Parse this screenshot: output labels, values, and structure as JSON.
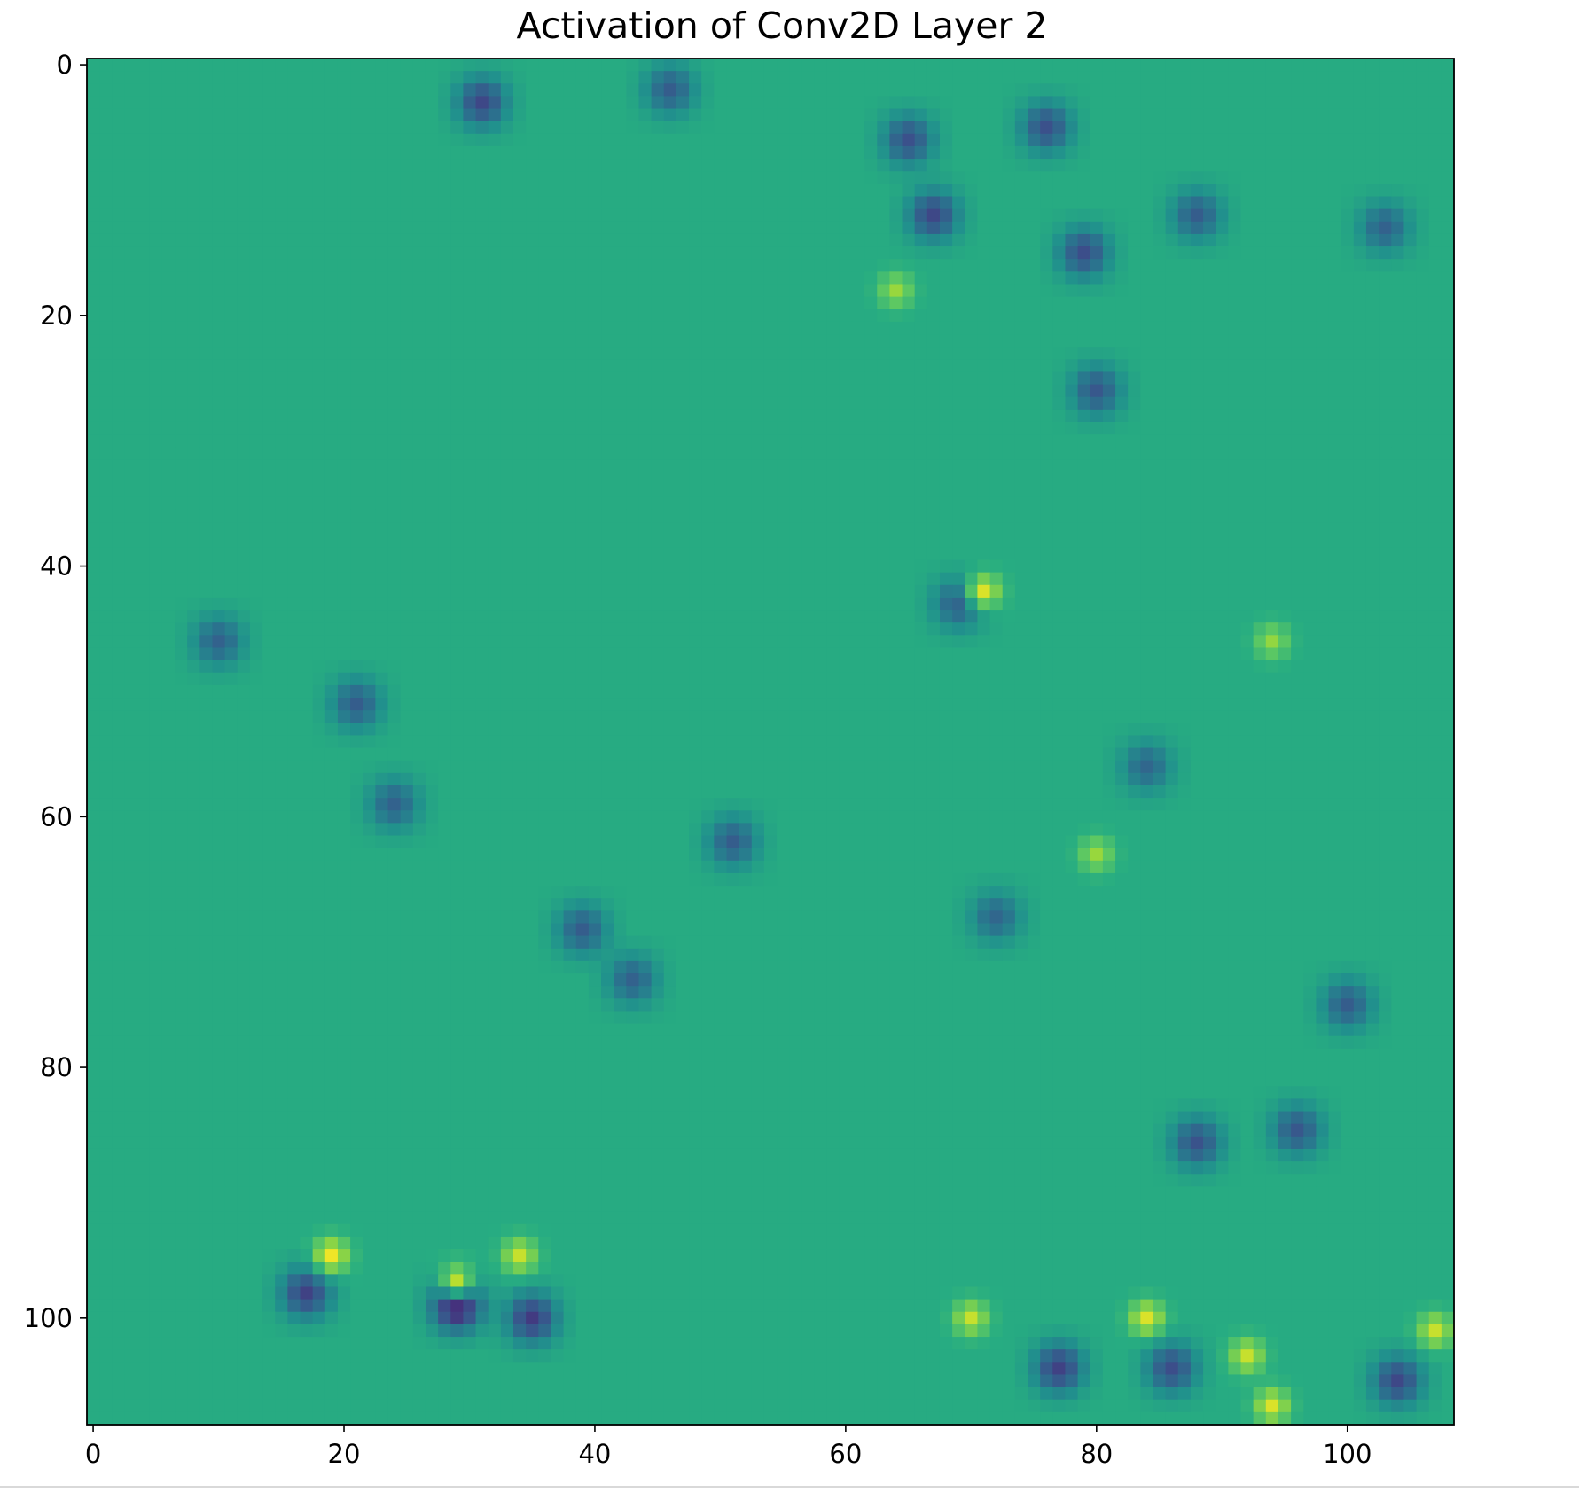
{
  "chart_data": {
    "type": "heatmap",
    "title": "Activation of Conv2D Layer 2",
    "xlabel": "",
    "ylabel": "",
    "colormap": "viridis",
    "grid": false,
    "image_shape": [
      109,
      109
    ],
    "xlim": [
      -0.5,
      108.5
    ],
    "ylim": [
      108.5,
      -0.5
    ],
    "xticks": [
      0,
      20,
      40,
      60,
      80,
      100
    ],
    "yticks": [
      0,
      20,
      40,
      60,
      80,
      100
    ],
    "background_level": 0.62,
    "dark_regions": [
      {
        "row": 3,
        "col": 31,
        "level": 0.22
      },
      {
        "row": 2,
        "col": 46,
        "level": 0.3
      },
      {
        "row": 6,
        "col": 65,
        "level": 0.25
      },
      {
        "row": 5,
        "col": 76,
        "level": 0.25
      },
      {
        "row": 12,
        "col": 67,
        "level": 0.22
      },
      {
        "row": 15,
        "col": 79,
        "level": 0.24
      },
      {
        "row": 12,
        "col": 88,
        "level": 0.3
      },
      {
        "row": 13,
        "col": 103,
        "level": 0.32
      },
      {
        "row": 26,
        "col": 80,
        "level": 0.28
      },
      {
        "row": 43,
        "col": 69,
        "level": 0.3
      },
      {
        "row": 46,
        "col": 10,
        "level": 0.32
      },
      {
        "row": 51,
        "col": 21,
        "level": 0.3
      },
      {
        "row": 59,
        "col": 24,
        "level": 0.32
      },
      {
        "row": 62,
        "col": 51,
        "level": 0.3
      },
      {
        "row": 69,
        "col": 39,
        "level": 0.3
      },
      {
        "row": 73,
        "col": 43,
        "level": 0.32
      },
      {
        "row": 68,
        "col": 72,
        "level": 0.34
      },
      {
        "row": 56,
        "col": 84,
        "level": 0.34
      },
      {
        "row": 75,
        "col": 100,
        "level": 0.3
      },
      {
        "row": 85,
        "col": 96,
        "level": 0.28
      },
      {
        "row": 86,
        "col": 88,
        "level": 0.26
      },
      {
        "row": 98,
        "col": 17,
        "level": 0.2
      },
      {
        "row": 99,
        "col": 29,
        "level": 0.06
      },
      {
        "row": 100,
        "col": 35,
        "level": 0.18
      },
      {
        "row": 104,
        "col": 77,
        "level": 0.2
      },
      {
        "row": 104,
        "col": 86,
        "level": 0.24
      },
      {
        "row": 105,
        "col": 104,
        "level": 0.22
      }
    ],
    "bright_regions": [
      {
        "row": 42,
        "col": 71,
        "level": 0.95
      },
      {
        "row": 95,
        "col": 19,
        "level": 0.98
      },
      {
        "row": 95,
        "col": 34,
        "level": 0.92
      },
      {
        "row": 97,
        "col": 29,
        "level": 0.9
      },
      {
        "row": 100,
        "col": 70,
        "level": 0.92
      },
      {
        "row": 100,
        "col": 84,
        "level": 0.95
      },
      {
        "row": 103,
        "col": 92,
        "level": 0.92
      },
      {
        "row": 107,
        "col": 94,
        "level": 0.95
      },
      {
        "row": 101,
        "col": 107,
        "level": 0.92
      },
      {
        "row": 18,
        "col": 64,
        "level": 0.85
      },
      {
        "row": 63,
        "col": 80,
        "level": 0.85
      },
      {
        "row": 46,
        "col": 94,
        "level": 0.84
      }
    ]
  }
}
